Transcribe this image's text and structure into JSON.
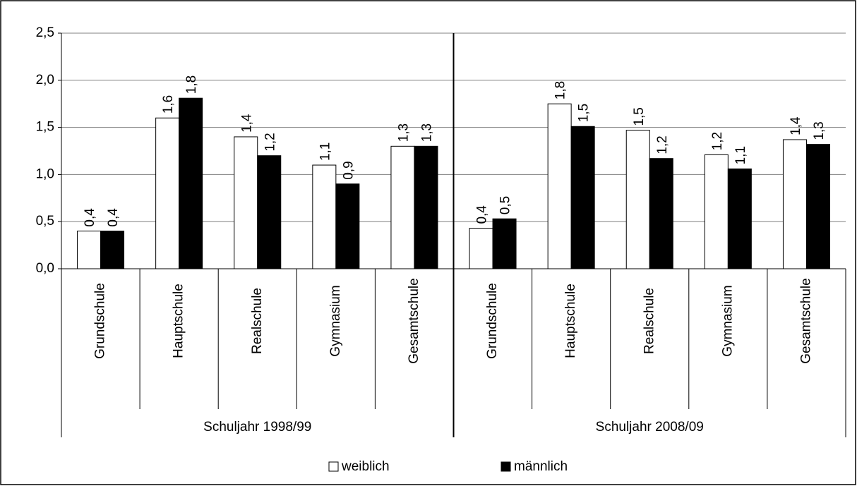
{
  "chart_data": {
    "type": "bar",
    "groups": [
      {
        "name": "Schuljahr 1998/99",
        "categories": [
          "Grundschule",
          "Hauptschule",
          "Realschule",
          "Gymnasium",
          "Gesamtschule"
        ]
      },
      {
        "name": "Schuljahr 2008/09",
        "categories": [
          "Grundschule",
          "Hauptschule",
          "Realschule",
          "Gymnasium",
          "Gesamtschule"
        ]
      }
    ],
    "series": [
      {
        "name": "weiblich",
        "color": "#ffffff",
        "values": [
          0.4,
          1.6,
          1.4,
          1.1,
          1.3,
          0.43,
          1.75,
          1.47,
          1.21,
          1.37
        ],
        "value_labels": [
          "0,4",
          "1,6",
          "1,4",
          "1,1",
          "1,3",
          "0,4",
          "1,8",
          "1,5",
          "1,2",
          "1,4"
        ]
      },
      {
        "name": "männlich",
        "color": "#000000",
        "values": [
          0.4,
          1.81,
          1.2,
          0.9,
          1.3,
          0.53,
          1.51,
          1.17,
          1.06,
          1.32
        ],
        "value_labels": [
          "0,4",
          "1,8",
          "1,2",
          "0,9",
          "1,3",
          "0,5",
          "1,5",
          "1,2",
          "1,1",
          "1,3"
        ]
      }
    ],
    "ylim": [
      0,
      2.5
    ],
    "yticks": [
      {
        "value": 0,
        "label": "0,0"
      },
      {
        "value": 0.5,
        "label": "0,5"
      },
      {
        "value": 1,
        "label": "1,0"
      },
      {
        "value": 1.5,
        "label": "1,5"
      },
      {
        "value": 2,
        "label": "2,0"
      },
      {
        "value": 2.5,
        "label": "2,5"
      }
    ],
    "grid": true,
    "legend": "bottom"
  }
}
